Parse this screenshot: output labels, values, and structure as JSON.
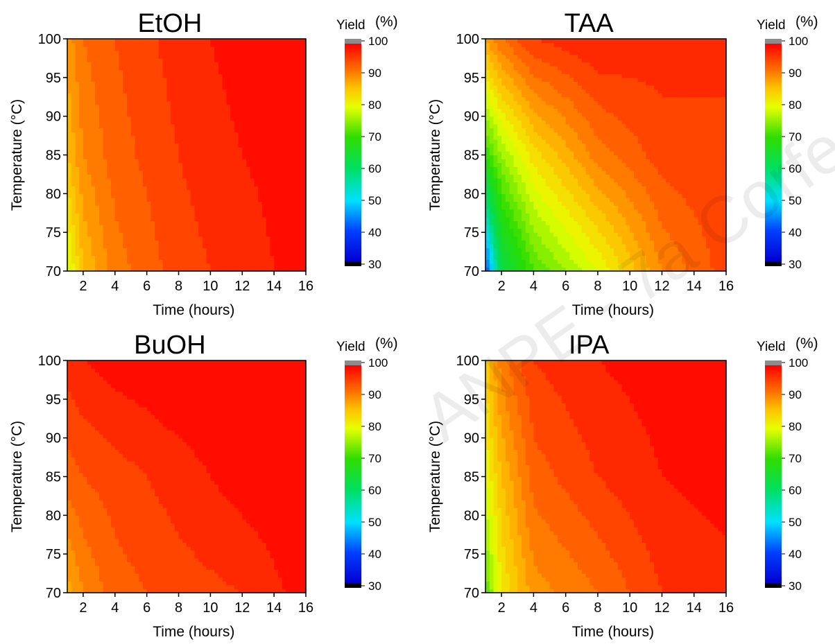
{
  "watermark": "ANPE - 7a Corfe",
  "chart_data": [
    {
      "type": "heatmap",
      "title": "EtOH",
      "xlabel": "Time (hours)",
      "ylabel": "Temperature (°C)",
      "xlim": [
        1,
        16
      ],
      "ylim": [
        70,
        100
      ],
      "xticks": [
        "2",
        "4",
        "6",
        "8",
        "10",
        "12",
        "14",
        "16"
      ],
      "yticks": [
        "70",
        "75",
        "80",
        "85",
        "90",
        "95",
        "100"
      ],
      "colorbar": {
        "title": "Yield",
        "unit": "(%)",
        "range": [
          30,
          100
        ],
        "ticks": [
          "30",
          "40",
          "50",
          "60",
          "70",
          "80",
          "90",
          "100"
        ]
      },
      "values": [
        {
          "t": 1,
          "T": 70,
          "yield": 79
        },
        {
          "t": 2,
          "T": 70,
          "yield": 86
        },
        {
          "t": 4,
          "T": 70,
          "yield": 91
        },
        {
          "t": 8,
          "T": 70,
          "yield": 95
        },
        {
          "t": 12,
          "T": 70,
          "yield": 97
        },
        {
          "t": 16,
          "T": 70,
          "yield": 99
        },
        {
          "t": 1,
          "T": 85,
          "yield": 86
        },
        {
          "t": 2,
          "T": 85,
          "yield": 90
        },
        {
          "t": 4,
          "T": 85,
          "yield": 93
        },
        {
          "t": 8,
          "T": 85,
          "yield": 96
        },
        {
          "t": 12,
          "T": 85,
          "yield": 98
        },
        {
          "t": 16,
          "T": 85,
          "yield": 99
        },
        {
          "t": 1,
          "T": 100,
          "yield": 89
        },
        {
          "t": 2,
          "T": 100,
          "yield": 92
        },
        {
          "t": 4,
          "T": 100,
          "yield": 94
        },
        {
          "t": 8,
          "T": 100,
          "yield": 97
        },
        {
          "t": 12,
          "T": 100,
          "yield": 99
        },
        {
          "t": 16,
          "T": 100,
          "yield": 99
        }
      ]
    },
    {
      "type": "heatmap",
      "title": "TAA",
      "xlabel": "Time (hours)",
      "ylabel": "Temperature (°C)",
      "xlim": [
        1,
        16
      ],
      "ylim": [
        70,
        100
      ],
      "xticks": [
        "2",
        "4",
        "6",
        "8",
        "10",
        "12",
        "14",
        "16"
      ],
      "yticks": [
        "70",
        "75",
        "80",
        "85",
        "90",
        "95",
        "100"
      ],
      "colorbar": {
        "title": "Yield",
        "unit": "(%)",
        "range": [
          30,
          100
        ],
        "ticks": [
          "30",
          "40",
          "50",
          "60",
          "70",
          "80",
          "90",
          "100"
        ]
      },
      "values": [
        {
          "t": 1,
          "T": 70,
          "yield": 40
        },
        {
          "t": 2,
          "T": 70,
          "yield": 62
        },
        {
          "t": 4,
          "T": 70,
          "yield": 72
        },
        {
          "t": 8,
          "T": 70,
          "yield": 80
        },
        {
          "t": 12,
          "T": 70,
          "yield": 90
        },
        {
          "t": 16,
          "T": 70,
          "yield": 95
        },
        {
          "t": 1,
          "T": 85,
          "yield": 70
        },
        {
          "t": 2,
          "T": 85,
          "yield": 76
        },
        {
          "t": 4,
          "T": 85,
          "yield": 83
        },
        {
          "t": 8,
          "T": 85,
          "yield": 91
        },
        {
          "t": 12,
          "T": 85,
          "yield": 95
        },
        {
          "t": 16,
          "T": 85,
          "yield": 96
        },
        {
          "t": 1,
          "T": 100,
          "yield": 88
        },
        {
          "t": 2,
          "T": 100,
          "yield": 92
        },
        {
          "t": 4,
          "T": 100,
          "yield": 96
        },
        {
          "t": 8,
          "T": 100,
          "yield": 98
        },
        {
          "t": 12,
          "T": 100,
          "yield": 97
        },
        {
          "t": 16,
          "T": 100,
          "yield": 96
        }
      ]
    },
    {
      "type": "heatmap",
      "title": "BuOH",
      "xlabel": "Time (hours)",
      "ylabel": "Temperature (°C)",
      "xlim": [
        1,
        16
      ],
      "ylim": [
        70,
        100
      ],
      "xticks": [
        "2",
        "4",
        "6",
        "8",
        "10",
        "12",
        "14",
        "16"
      ],
      "yticks": [
        "70",
        "75",
        "80",
        "85",
        "90",
        "95",
        "100"
      ],
      "colorbar": {
        "title": "Yield",
        "unit": "(%)",
        "range": [
          30,
          100
        ],
        "ticks": [
          "30",
          "40",
          "50",
          "60",
          "70",
          "80",
          "90",
          "100"
        ]
      },
      "values": [
        {
          "t": 1,
          "T": 70,
          "yield": 87
        },
        {
          "t": 2,
          "T": 70,
          "yield": 90
        },
        {
          "t": 4,
          "T": 70,
          "yield": 93
        },
        {
          "t": 8,
          "T": 70,
          "yield": 95
        },
        {
          "t": 12,
          "T": 70,
          "yield": 96
        },
        {
          "t": 16,
          "T": 70,
          "yield": 99
        },
        {
          "t": 1,
          "T": 85,
          "yield": 93
        },
        {
          "t": 2,
          "T": 85,
          "yield": 94
        },
        {
          "t": 4,
          "T": 85,
          "yield": 95
        },
        {
          "t": 8,
          "T": 85,
          "yield": 97
        },
        {
          "t": 12,
          "T": 85,
          "yield": 99
        },
        {
          "t": 16,
          "T": 85,
          "yield": 100
        },
        {
          "t": 1,
          "T": 100,
          "yield": 97
        },
        {
          "t": 2,
          "T": 100,
          "yield": 98
        },
        {
          "t": 4,
          "T": 100,
          "yield": 99
        },
        {
          "t": 8,
          "T": 100,
          "yield": 100
        },
        {
          "t": 12,
          "T": 100,
          "yield": 100
        },
        {
          "t": 16,
          "T": 100,
          "yield": 100
        }
      ]
    },
    {
      "type": "heatmap",
      "title": "IPA",
      "xlabel": "Time (hours)",
      "ylabel": "Temperature (°C)",
      "xlim": [
        1,
        16
      ],
      "ylim": [
        70,
        100
      ],
      "xticks": [
        "2",
        "4",
        "6",
        "8",
        "10",
        "12",
        "14",
        "16"
      ],
      "yticks": [
        "70",
        "75",
        "80",
        "85",
        "90",
        "95",
        "100"
      ],
      "colorbar": {
        "title": "Yield",
        "unit": "(%)",
        "range": [
          30,
          100
        ],
        "ticks": [
          "30",
          "40",
          "50",
          "60",
          "70",
          "80",
          "90",
          "100"
        ]
      },
      "values": [
        {
          "t": 1,
          "T": 70,
          "yield": 72
        },
        {
          "t": 2,
          "T": 70,
          "yield": 82
        },
        {
          "t": 4,
          "T": 70,
          "yield": 89
        },
        {
          "t": 8,
          "T": 70,
          "yield": 92
        },
        {
          "t": 12,
          "T": 70,
          "yield": 96
        },
        {
          "t": 16,
          "T": 70,
          "yield": 97
        },
        {
          "t": 1,
          "T": 85,
          "yield": 80
        },
        {
          "t": 2,
          "T": 85,
          "yield": 86
        },
        {
          "t": 4,
          "T": 85,
          "yield": 93
        },
        {
          "t": 8,
          "T": 85,
          "yield": 96
        },
        {
          "t": 12,
          "T": 85,
          "yield": 98
        },
        {
          "t": 16,
          "T": 85,
          "yield": 99
        },
        {
          "t": 1,
          "T": 100,
          "yield": 85
        },
        {
          "t": 2,
          "T": 100,
          "yield": 91
        },
        {
          "t": 4,
          "T": 100,
          "yield": 96
        },
        {
          "t": 8,
          "T": 100,
          "yield": 98
        },
        {
          "t": 12,
          "T": 100,
          "yield": 99
        },
        {
          "t": 16,
          "T": 100,
          "yield": 100
        }
      ]
    }
  ]
}
